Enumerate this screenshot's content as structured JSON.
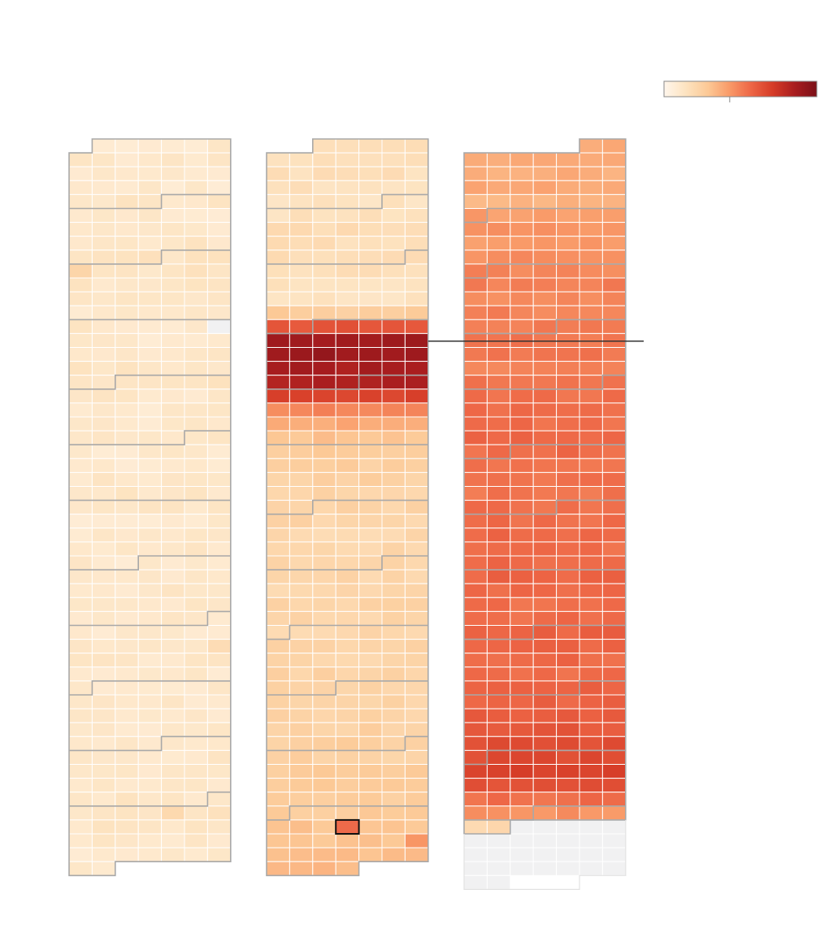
{
  "chart_data": {
    "type": "heatmap",
    "grid": {
      "columns_per_panel": 7,
      "weeks": 53,
      "weekdays_per_row": 7
    },
    "color_scale": {
      "stops": [
        "#fff6ec",
        "#fde3c0",
        "#fcc996",
        "#f99a68",
        "#ed6545",
        "#d53b27",
        "#a81d1f",
        "#7b1018"
      ],
      "missing_color": "#f1f1f2",
      "legend_tick_fraction": 0.43
    },
    "annotation": {
      "panel": 2,
      "row": 14
    },
    "highlight": {
      "panel": 2,
      "row": 49,
      "col": 3
    },
    "panels": [
      {
        "start_offset": 1,
        "days": 365,
        "base": [
          0.1,
          0.11,
          0.11,
          0.1,
          0.12,
          0.1,
          0.1,
          0.12,
          0.14,
          0.13,
          0.12,
          0.11,
          0.1,
          0.11,
          0.1,
          0.11,
          0.12,
          0.13,
          0.11,
          0.1,
          0.1,
          0.11,
          0.1,
          0.1,
          0.11,
          0.12,
          0.11,
          0.1,
          0.1,
          0.11,
          0.1,
          0.1,
          0.11,
          0.12,
          0.11,
          0.1,
          0.1,
          0.11,
          0.1,
          0.1,
          0.11,
          0.1,
          0.11,
          0.12,
          0.11,
          0.1,
          0.11,
          0.12,
          0.13,
          0.12,
          0.11,
          0.1,
          0.1
        ],
        "overrides": [
          [
            9,
            0,
            0.22
          ],
          [
            13,
            6,
            -1
          ],
          [
            36,
            6,
            0.18
          ],
          [
            48,
            4,
            0.2
          ],
          [
            55,
            5,
            0.19
          ]
        ]
      },
      {
        "start_offset": 2,
        "days": 366,
        "base": [
          0.16,
          0.16,
          0.16,
          0.15,
          0.14,
          0.15,
          0.18,
          0.17,
          0.17,
          0.16,
          0.14,
          0.13,
          0.26,
          0.62,
          0.88,
          0.9,
          0.86,
          0.83,
          0.68,
          0.48,
          0.38,
          0.3,
          0.27,
          0.25,
          0.24,
          0.22,
          0.23,
          0.22,
          0.2,
          0.21,
          0.22,
          0.21,
          0.21,
          0.22,
          0.22,
          0.21,
          0.22,
          0.22,
          0.23,
          0.22,
          0.22,
          0.23,
          0.24,
          0.25,
          0.24,
          0.26,
          0.27,
          0.26,
          0.27,
          0.3,
          0.3,
          0.31,
          0.33
        ],
        "overrides": [
          [
            50,
            6,
            0.44
          ],
          [
            90,
            4,
            0.85
          ],
          [
            91,
            5,
            0.62
          ],
          [
            119,
            4,
            0.72
          ],
          [
            120,
            5,
            0.66
          ],
          [
            160,
            5,
            0.62
          ],
          [
            161,
            6,
            0.55
          ],
          [
            244,
            5,
            0.09
          ],
          [
            334,
            4,
            0.4
          ]
        ]
      },
      {
        "start_offset": 5,
        "days": 340,
        "base": [
          0.37,
          0.38,
          0.37,
          0.38,
          0.35,
          0.42,
          0.45,
          0.43,
          0.46,
          0.48,
          0.5,
          0.47,
          0.49,
          0.51,
          0.52,
          0.53,
          0.5,
          0.52,
          0.54,
          0.55,
          0.55,
          0.56,
          0.55,
          0.54,
          0.53,
          0.53,
          0.54,
          0.55,
          0.56,
          0.55,
          0.56,
          0.57,
          0.56,
          0.54,
          0.55,
          0.58,
          0.57,
          0.56,
          0.55,
          0.58,
          0.58,
          0.6,
          0.62,
          0.64,
          0.66,
          0.69,
          0.63,
          0.55,
          0.45,
          0.2
        ],
        "overrides": [
          [
            87,
            0,
            0.78
          ],
          [
            88,
            1,
            0.74
          ],
          [
            89,
            2,
            0.5
          ],
          [
            111,
            3,
            0.55
          ],
          [
            112,
            4,
            0.56
          ],
          [
            280,
            0,
            0.64
          ],
          [
            331,
            6,
            0.1
          ],
          [
            337,
            0,
            0.16
          ],
          [
            338,
            1,
            0.16
          ]
        ]
      }
    ]
  }
}
